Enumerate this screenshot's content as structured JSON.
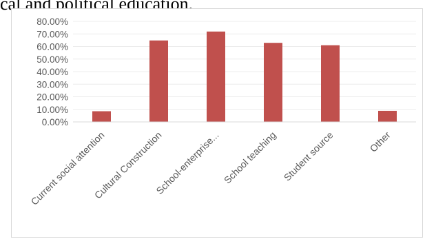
{
  "header_fragment": "cal and political education.",
  "chart_data": {
    "type": "bar",
    "categories": [
      "Current social attention",
      "Cultural Construction",
      "School-enterprise...",
      "School teaching",
      "Student source",
      "Other"
    ],
    "series": [
      {
        "values": [
          8.5,
          64.8,
          71.9,
          62.9,
          61.0,
          8.8
        ]
      }
    ],
    "y_ticks": [
      "0.00%",
      "10.00%",
      "20.00%",
      "30.00%",
      "40.00%",
      "50.00%",
      "60.00%",
      "70.00%",
      "80.00%"
    ],
    "ylim": [
      0,
      80
    ],
    "grid": true,
    "legend": "none",
    "bar_color": "#c0504d",
    "grid_color": "#ececec"
  }
}
